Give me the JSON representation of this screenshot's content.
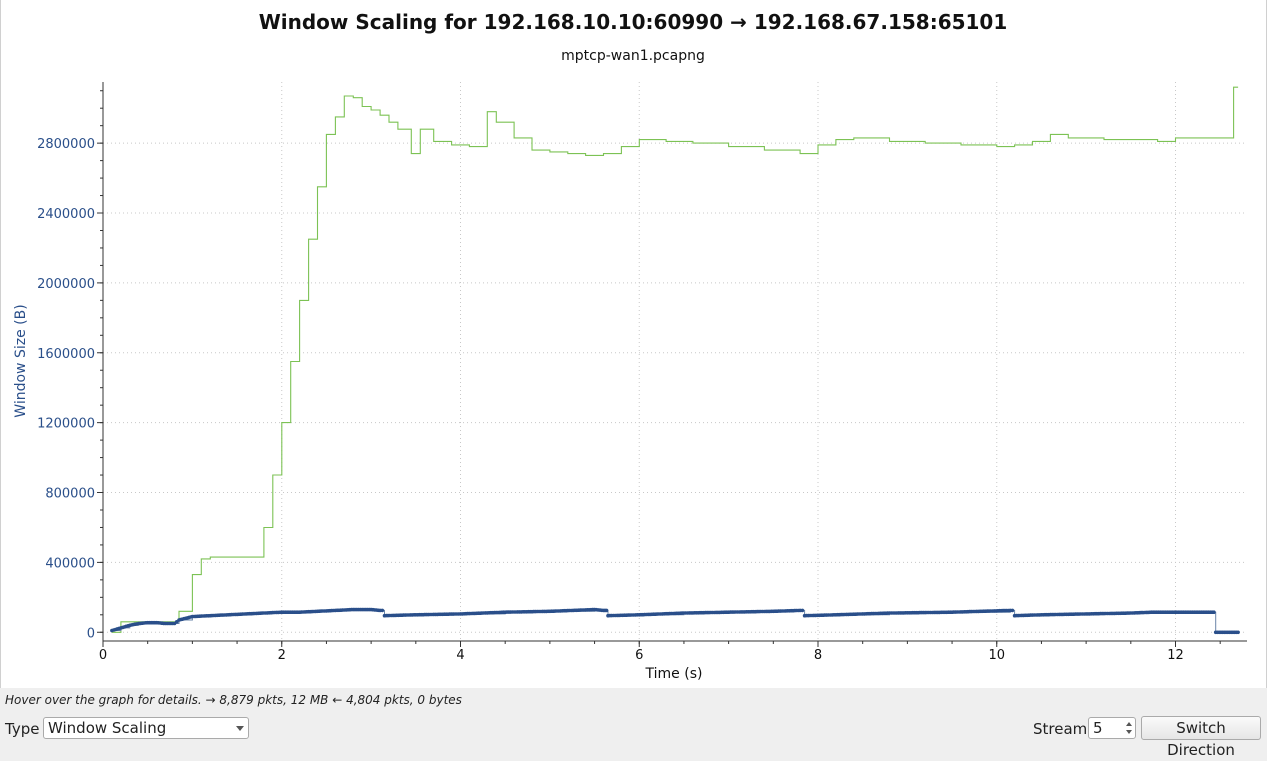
{
  "chart_data": {
    "type": "line",
    "title": "Window Scaling for 192.168.10.10:60990 → 192.168.67.158:65101",
    "subtitle": "mptcp-wan1.pcapng",
    "xlabel": "Time (s)",
    "ylabel": "Window Size (B)",
    "xlim": [
      0,
      12.8
    ],
    "ylim": [
      -50000,
      3150000
    ],
    "x_ticks": [
      "0",
      "2",
      "4",
      "6",
      "8",
      "10",
      "12"
    ],
    "y_ticks": [
      "0",
      "400000",
      "800000",
      "1200000",
      "1600000",
      "2000000",
      "2400000",
      "2800000"
    ],
    "grid": true,
    "series": [
      {
        "color": "#7cc254",
        "style": "step",
        "x": [
          0.1,
          0.2,
          0.3,
          0.5,
          0.7,
          0.8,
          0.85,
          1.0,
          1.1,
          1.2,
          1.7,
          1.8,
          1.9,
          2.0,
          2.1,
          2.2,
          2.3,
          2.4,
          2.5,
          2.6,
          2.7,
          2.8,
          2.9,
          3.0,
          3.1,
          3.2,
          3.3,
          3.45,
          3.55,
          3.7,
          3.9,
          4.1,
          4.3,
          4.4,
          4.6,
          4.8,
          5.0,
          5.2,
          5.4,
          5.6,
          5.8,
          6.0,
          6.3,
          6.6,
          7.0,
          7.4,
          7.8,
          8.0,
          8.2,
          8.4,
          8.8,
          9.2,
          9.6,
          10.0,
          10.2,
          10.4,
          10.6,
          10.8,
          11.2,
          11.8,
          12.0,
          12.6,
          12.65,
          12.7
        ],
        "values": [
          0,
          60000,
          60000,
          60000,
          60000,
          60000,
          120000,
          330000,
          420000,
          430000,
          430000,
          600000,
          900000,
          1200000,
          1550000,
          1900000,
          2250000,
          2550000,
          2850000,
          2950000,
          3070000,
          3060000,
          3010000,
          2990000,
          2960000,
          2920000,
          2880000,
          2740000,
          2880000,
          2810000,
          2790000,
          2780000,
          2980000,
          2920000,
          2830000,
          2760000,
          2750000,
          2740000,
          2730000,
          2740000,
          2780000,
          2820000,
          2810000,
          2800000,
          2780000,
          2760000,
          2740000,
          2790000,
          2820000,
          2830000,
          2810000,
          2800000,
          2790000,
          2780000,
          2790000,
          2810000,
          2850000,
          2830000,
          2820000,
          2810000,
          2830000,
          2830000,
          3120000,
          3120000
        ]
      },
      {
        "color": "#2a4f8a",
        "style": "markers",
        "x": [
          0.1,
          0.2,
          0.3,
          0.4,
          0.5,
          0.6,
          0.7,
          0.8,
          0.85,
          1.0,
          1.2,
          1.4,
          1.6,
          1.8,
          2.0,
          2.2,
          2.4,
          2.6,
          2.8,
          3.0,
          3.1,
          3.15,
          3.5,
          4.0,
          4.5,
          5.0,
          5.5,
          5.6,
          5.65,
          6.0,
          6.5,
          7.0,
          7.5,
          7.8,
          7.85,
          8.2,
          8.8,
          9.5,
          10.15,
          10.2,
          10.5,
          11.0,
          11.5,
          11.75,
          12.15,
          12.45,
          12.7
        ],
        "values": [
          10000,
          25000,
          40000,
          50000,
          55000,
          55000,
          50000,
          50000,
          70000,
          90000,
          95000,
          100000,
          105000,
          110000,
          115000,
          115000,
          120000,
          125000,
          130000,
          130000,
          125000,
          95000,
          100000,
          105000,
          115000,
          120000,
          130000,
          125000,
          95000,
          100000,
          110000,
          115000,
          120000,
          125000,
          95000,
          100000,
          110000,
          115000,
          125000,
          95000,
          100000,
          105000,
          110000,
          115000,
          115000,
          0,
          0
        ]
      }
    ]
  },
  "status_text": "Hover over the graph for details. → 8,879 pkts, 12 MB ← 4,804 pkts, 0 bytes",
  "controls": {
    "type_label": "Type",
    "type_value": "Window Scaling",
    "stream_label": "Stream",
    "stream_value": "5",
    "switch_button": "Switch Direction"
  }
}
